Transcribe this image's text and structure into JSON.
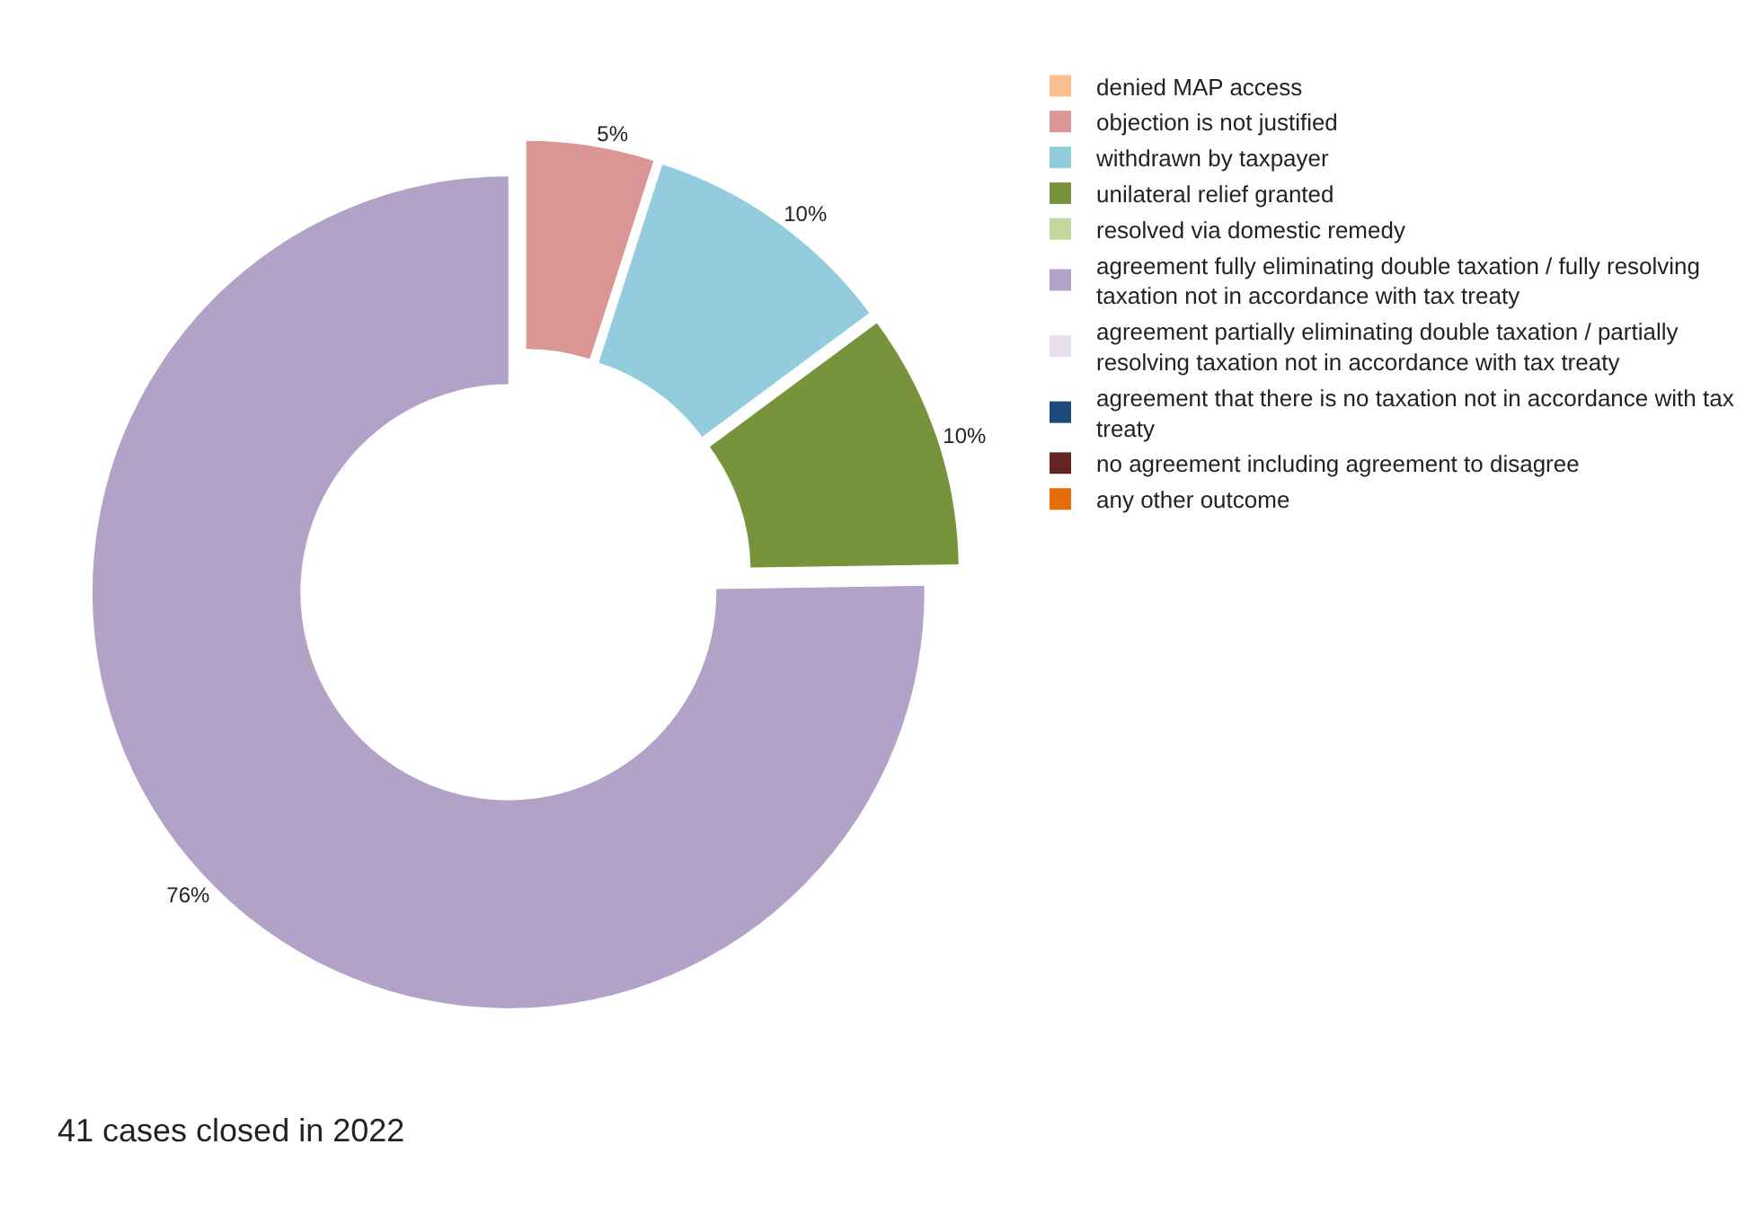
{
  "chart_data": {
    "type": "donut",
    "categories": [
      "denied MAP access",
      "objection is not justified",
      "withdrawn by taxpayer",
      "unilateral relief granted",
      "resolved via domestic remedy",
      "agreement fully eliminating double taxation / fully resolving taxation not in accordance with tax treaty",
      "agreement partially eliminating double taxation / partially resolving taxation not in accordance with tax treaty",
      "agreement that there is no taxation not in accordance with tax treaty",
      "no agreement including agreement to disagree",
      "any other outcome"
    ],
    "values": [
      0,
      5,
      10,
      10,
      0,
      76,
      0,
      0,
      0,
      0
    ],
    "value_labels": [
      null,
      "5%",
      "10%",
      "10%",
      null,
      "76%",
      null,
      null,
      null,
      null
    ],
    "colors": [
      "#fac090",
      "#d99694",
      "#93cddd",
      "#77933c",
      "#c3d69b",
      "#b3a2c7",
      "#e6e0ec",
      "#1f497d",
      "#632523",
      "#e46c0a"
    ],
    "legend": "right",
    "annotations": [
      "41 cases closed in 2022"
    ]
  }
}
